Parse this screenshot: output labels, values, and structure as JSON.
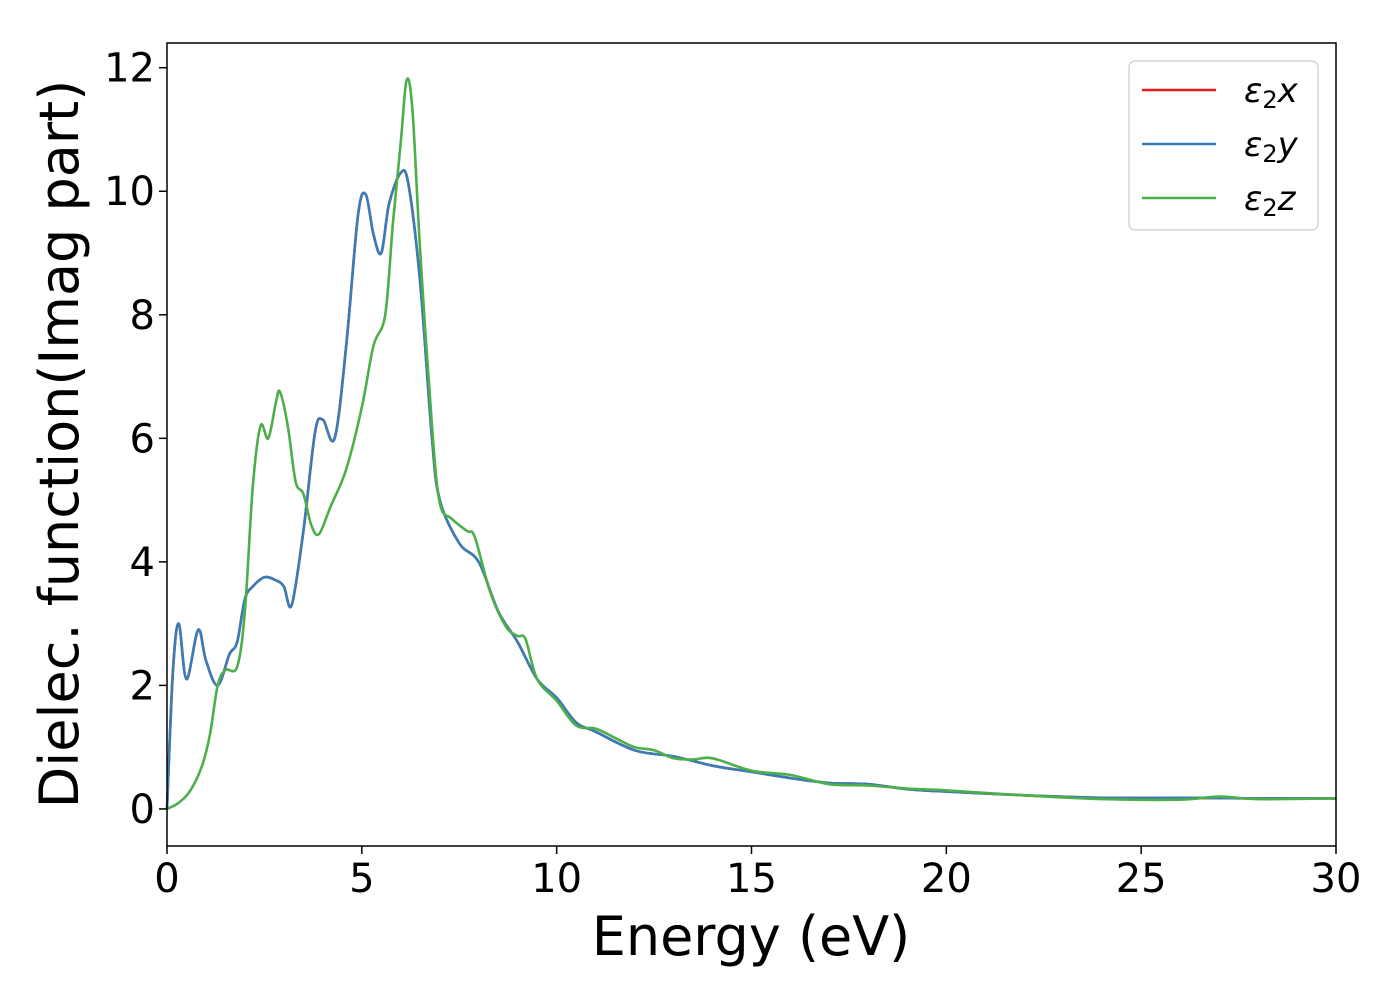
{
  "chart_data": {
    "type": "line",
    "xlabel": "Energy (eV)",
    "ylabel": "Dielec. function(Imag part)",
    "xlim": [
      0,
      30
    ],
    "ylim": [
      -0.6,
      12.4
    ],
    "xticks": [
      0,
      5,
      10,
      15,
      20,
      25,
      30
    ],
    "yticks": [
      0,
      2,
      4,
      6,
      8,
      10,
      12
    ],
    "grid": false,
    "legend_position": "top-right",
    "series": [
      {
        "name": "ε2x",
        "color": "#e41a1c",
        "x": [
          0,
          0.15,
          0.3,
          0.5,
          0.8,
          1.0,
          1.3,
          1.6,
          1.8,
          2.0,
          2.2,
          2.5,
          2.8,
          3.0,
          3.2,
          3.5,
          3.8,
          4.0,
          4.3,
          4.6,
          4.9,
          5.1,
          5.3,
          5.5,
          5.7,
          6.0,
          6.2,
          6.5,
          6.8,
          7.0,
          7.5,
          8.0,
          8.5,
          9.0,
          9.5,
          10.0,
          10.5,
          11.0,
          12.0,
          13.0,
          14.0,
          15.0,
          16.0,
          17.0,
          18.0,
          19.0,
          20.0,
          22.0,
          24.0,
          26.0,
          28.0,
          30.0
        ],
        "values": [
          0.0,
          2.2,
          3.0,
          2.1,
          2.9,
          2.4,
          2.0,
          2.5,
          2.7,
          3.4,
          3.6,
          3.75,
          3.7,
          3.6,
          3.3,
          4.5,
          6.1,
          6.3,
          6.0,
          7.5,
          9.6,
          9.95,
          9.3,
          9.0,
          9.8,
          10.3,
          10.1,
          8.5,
          6.0,
          5.0,
          4.3,
          4.0,
          3.2,
          2.7,
          2.1,
          1.8,
          1.4,
          1.25,
          0.95,
          0.85,
          0.7,
          0.6,
          0.5,
          0.42,
          0.4,
          0.32,
          0.28,
          0.22,
          0.18,
          0.18,
          0.17,
          0.17
        ]
      },
      {
        "name": "ε2y",
        "color": "#377eb8",
        "x": [
          0,
          0.15,
          0.3,
          0.5,
          0.8,
          1.0,
          1.3,
          1.6,
          1.8,
          2.0,
          2.2,
          2.5,
          2.8,
          3.0,
          3.2,
          3.5,
          3.8,
          4.0,
          4.3,
          4.6,
          4.9,
          5.1,
          5.3,
          5.5,
          5.7,
          6.0,
          6.2,
          6.5,
          6.8,
          7.0,
          7.5,
          8.0,
          8.5,
          9.0,
          9.5,
          10.0,
          10.5,
          11.0,
          12.0,
          13.0,
          14.0,
          15.0,
          16.0,
          17.0,
          18.0,
          19.0,
          20.0,
          22.0,
          24.0,
          26.0,
          28.0,
          30.0
        ],
        "values": [
          0.0,
          2.2,
          3.0,
          2.1,
          2.9,
          2.4,
          2.0,
          2.5,
          2.7,
          3.4,
          3.6,
          3.75,
          3.7,
          3.6,
          3.3,
          4.5,
          6.1,
          6.3,
          6.0,
          7.5,
          9.6,
          9.95,
          9.3,
          9.0,
          9.8,
          10.3,
          10.1,
          8.5,
          6.0,
          5.0,
          4.3,
          4.0,
          3.2,
          2.7,
          2.1,
          1.8,
          1.4,
          1.25,
          0.95,
          0.85,
          0.7,
          0.6,
          0.5,
          0.42,
          0.4,
          0.32,
          0.28,
          0.22,
          0.18,
          0.18,
          0.17,
          0.17
        ]
      },
      {
        "name": "ε2z",
        "color": "#4daf4a",
        "x": [
          0,
          0.3,
          0.6,
          0.9,
          1.1,
          1.3,
          1.5,
          1.8,
          2.0,
          2.2,
          2.4,
          2.6,
          2.8,
          2.9,
          3.1,
          3.3,
          3.5,
          3.7,
          3.9,
          4.2,
          4.6,
          5.0,
          5.3,
          5.6,
          5.8,
          6.0,
          6.15,
          6.3,
          6.5,
          6.8,
          7.0,
          7.3,
          7.7,
          7.9,
          8.3,
          8.7,
          9.0,
          9.2,
          9.5,
          10.0,
          10.5,
          11.0,
          11.5,
          12.0,
          12.5,
          13.0,
          13.5,
          14.0,
          15.0,
          16.0,
          17.0,
          18.0,
          19.0,
          20.0,
          22.0,
          24.0,
          26.0,
          27.0,
          28.0,
          30.0
        ],
        "values": [
          0.0,
          0.1,
          0.3,
          0.7,
          1.2,
          2.0,
          2.25,
          2.3,
          3.2,
          5.2,
          6.2,
          6.0,
          6.6,
          6.75,
          6.2,
          5.3,
          5.1,
          4.6,
          4.45,
          4.9,
          5.5,
          6.5,
          7.5,
          8.0,
          9.5,
          10.8,
          11.8,
          11.3,
          9.0,
          6.2,
          4.95,
          4.7,
          4.5,
          4.4,
          3.5,
          2.95,
          2.8,
          2.75,
          2.1,
          1.75,
          1.35,
          1.3,
          1.15,
          1.0,
          0.95,
          0.82,
          0.8,
          0.82,
          0.62,
          0.55,
          0.4,
          0.38,
          0.33,
          0.3,
          0.22,
          0.16,
          0.15,
          0.2,
          0.16,
          0.17
        ]
      }
    ]
  }
}
